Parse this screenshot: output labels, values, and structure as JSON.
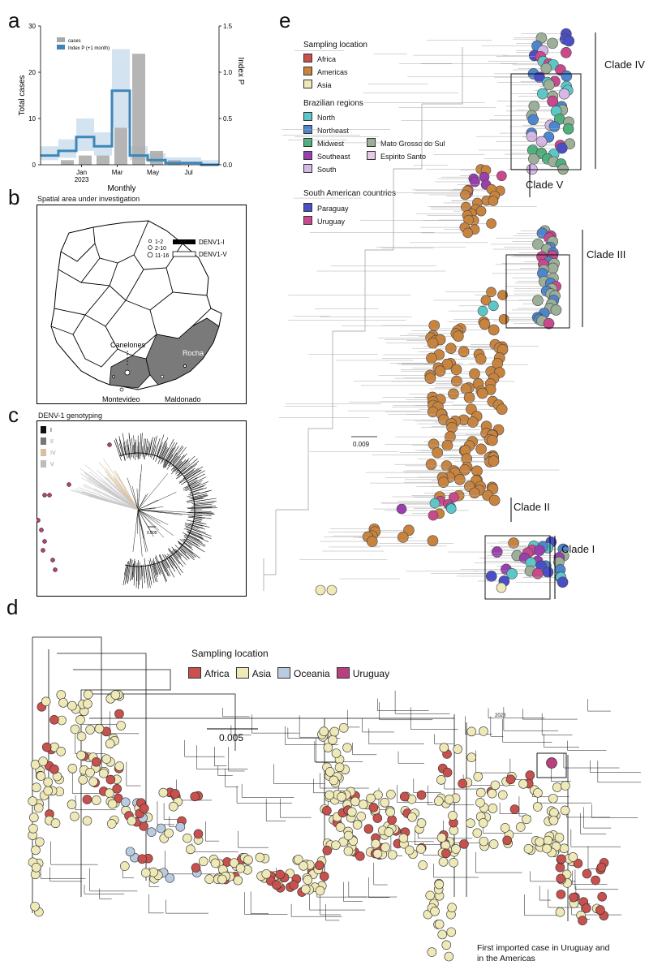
{
  "panels": {
    "a": "a",
    "b": "b",
    "c": "c",
    "d": "d",
    "e": "e"
  },
  "colors": {
    "africa": "#c8504d",
    "americas": "#c8843f",
    "asia": "#efe9b8",
    "oceania": "#b9cbe0",
    "uruguay": "#b8407c",
    "north": "#5cc7c9",
    "northeast": "#4d86cf",
    "midwest": "#4fb07e",
    "southeast": "#9b3fae",
    "south": "#d6b8e6",
    "mato_grosso": "#9caf98",
    "espirito_santo": "#e5c9e6",
    "paraguay": "#4a4fc8",
    "uruguay_e": "#c94a8c",
    "cases_bar": "#a8a8a8",
    "index_line": "#3f86b8",
    "index_band": "#c9dcec"
  },
  "panel_a": {
    "chart_data": {
      "type": "bar",
      "title": "",
      "xlabel": "Monthly",
      "ylabel": "Total cases",
      "y2label": "Index P",
      "ylim": [
        0,
        30
      ],
      "y2lim": [
        0,
        1.5
      ],
      "yticks": [
        "0",
        "10",
        "20",
        "30"
      ],
      "y2ticks": [
        "0.0",
        "0.5",
        "1.0",
        "1.5"
      ],
      "xticks": [
        "Jan\n2023",
        "Mar",
        "May",
        "Jul"
      ],
      "xtick_top": [
        "Jan",
        "Mar",
        "May",
        "Jul"
      ],
      "xtick_bottom": [
        "2023",
        "",
        "",
        ""
      ],
      "months": [
        "Nov",
        "Dec",
        "Jan",
        "Feb",
        "Mar",
        "Apr",
        "May",
        "Jun",
        "Jul",
        "Aug"
      ],
      "series": [
        {
          "name": "cases",
          "values": [
            0,
            1,
            2,
            2,
            8,
            24,
            3,
            1,
            0,
            0
          ]
        },
        {
          "name": "Index P (+1 month)",
          "values": [
            0.1,
            0.15,
            0.3,
            0.2,
            0.8,
            0.1,
            0.05,
            0.02,
            0.02,
            0.0
          ]
        }
      ],
      "legend": [
        "cases",
        "Index P (+1 month)"
      ]
    }
  },
  "panel_b": {
    "title": "Spatial area under investigation",
    "legend_sizes": [
      "1-2",
      "2-10",
      "11-16"
    ],
    "legend_types": [
      "DENV1-I",
      "DENV1-V"
    ],
    "places": {
      "canelones": "Canelones",
      "rocha": "Rocha",
      "montevideo": "Montevideo",
      "maldonado": "Maldonado"
    }
  },
  "panel_c": {
    "title": "DENV-1 genotyping",
    "genotypes": [
      "I",
      "II",
      "IV",
      "V"
    ],
    "scale": "0.005"
  },
  "panel_d": {
    "legend_title": "Sampling location",
    "legend": [
      "Africa",
      "Asia",
      "Oceania",
      "Uruguay"
    ],
    "scale": "0.005",
    "year": "2023",
    "annotation_line1": "First imported case in Uruguay and",
    "annotation_line2": "in the Americas"
  },
  "panel_e": {
    "sampling_title": "Sampling location",
    "sampling": [
      "Africa",
      "Americas",
      "Asia"
    ],
    "regions_title": "Brazilian regions",
    "regions_left": [
      "North",
      "Northeast",
      "Midwest",
      "Southeast",
      "South"
    ],
    "regions_right": [
      "Mato Grosso do Sul",
      "Espirito Santo"
    ],
    "countries_title": "South American countries",
    "countries": [
      "Paraguay",
      "Uruguay"
    ],
    "scale": "0.009",
    "clades": [
      "Clade IV",
      "Clade V",
      "Clade III",
      "Clade II",
      "Clade I"
    ]
  }
}
